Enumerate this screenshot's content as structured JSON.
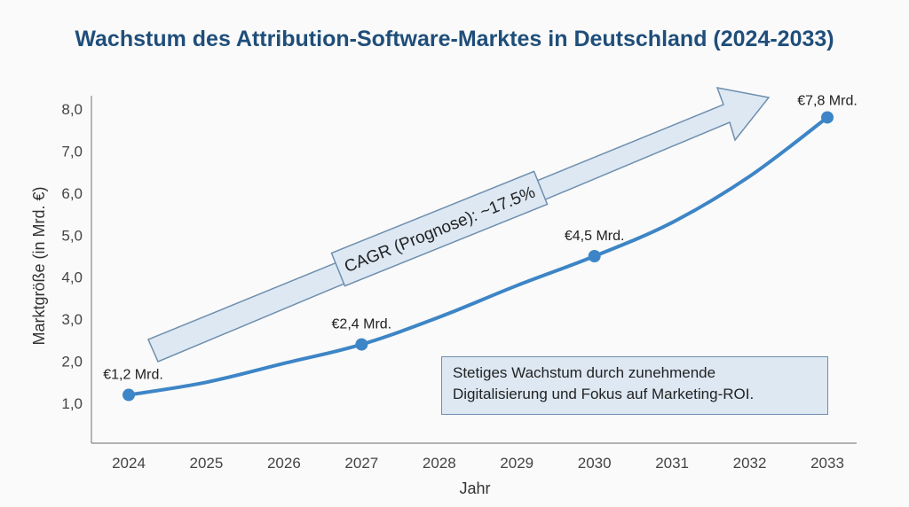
{
  "chart_data": {
    "type": "line",
    "title": "Wachstum des Attribution-Software-Marktes in Deutschland (2024-2033)",
    "xlabel": "Jahr",
    "ylabel": "Marktgröße (in Mrd. €)",
    "x": [
      2024,
      2025,
      2026,
      2027,
      2028,
      2029,
      2030,
      2031,
      2032,
      2033
    ],
    "values": [
      1.2,
      1.5,
      1.95,
      2.4,
      3.05,
      3.8,
      4.5,
      5.3,
      6.4,
      7.8
    ],
    "ylim": [
      1.0,
      8.0
    ],
    "yticks": [
      "1,0",
      "2,0",
      "3,0",
      "4,0",
      "5,0",
      "6,0",
      "7,0",
      "8,0"
    ],
    "grid": false,
    "color": "#3d85c6",
    "markers": [
      {
        "x": 2024,
        "y": 1.2,
        "label": "€1,2 Mrd."
      },
      {
        "x": 2027,
        "y": 2.4,
        "label": "€2,4 Mrd."
      },
      {
        "x": 2030,
        "y": 4.5,
        "label": "€4,5 Mrd."
      },
      {
        "x": 2033,
        "y": 7.8,
        "label": "€7,8 Mrd."
      }
    ],
    "annotations": {
      "cagr": "CAGR (Prognose): ~17.5%",
      "note_line1": "Stetiges Wachstum durch zunehmende",
      "note_line2": "Digitalisierung und Fokus auf Marketing-ROI."
    }
  }
}
